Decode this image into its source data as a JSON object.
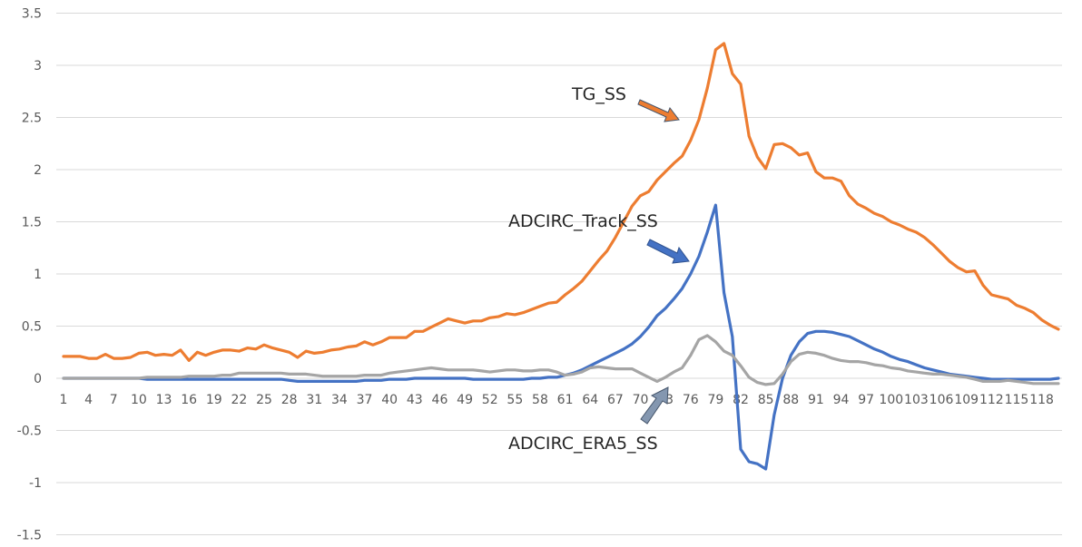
{
  "chart_data": {
    "type": "line",
    "title": "",
    "xlabel": "",
    "ylabel": "",
    "ylim": [
      -1.5,
      3.5
    ],
    "ytick_step": 0.5,
    "yticks": [
      "-1.5",
      "-1",
      "-0.5",
      "0",
      "0.5",
      "1",
      "1.5",
      "2",
      "2.5",
      "3",
      "3.5"
    ],
    "grid": true,
    "legend": "none",
    "x": [
      1,
      2,
      3,
      4,
      5,
      6,
      7,
      8,
      9,
      10,
      11,
      12,
      13,
      14,
      15,
      16,
      17,
      18,
      19,
      20,
      21,
      22,
      23,
      24,
      25,
      26,
      27,
      28,
      29,
      30,
      31,
      32,
      33,
      34,
      35,
      36,
      37,
      38,
      39,
      40,
      41,
      42,
      43,
      44,
      45,
      46,
      47,
      48,
      49,
      50,
      51,
      52,
      53,
      54,
      55,
      56,
      57,
      58,
      59,
      60,
      61,
      62,
      63,
      64,
      65,
      66,
      67,
      68,
      69,
      70,
      71,
      72,
      73,
      74,
      75,
      76,
      77,
      78,
      79,
      80,
      81,
      82,
      83,
      84,
      85,
      86,
      87,
      88,
      89,
      90,
      91,
      92,
      93,
      94,
      95,
      96,
      97,
      98,
      99,
      100,
      101,
      102,
      103,
      104,
      105,
      106,
      107,
      108,
      109,
      110,
      111,
      112,
      113,
      114,
      115,
      116,
      117,
      118,
      119,
      120
    ],
    "xtick_every": 3,
    "series": [
      {
        "name": "TG_SS",
        "color": "#ED7D31",
        "values": [
          0.21,
          0.21,
          0.21,
          0.19,
          0.19,
          0.23,
          0.19,
          0.19,
          0.2,
          0.24,
          0.25,
          0.22,
          0.23,
          0.22,
          0.27,
          0.17,
          0.25,
          0.22,
          0.25,
          0.27,
          0.27,
          0.26,
          0.29,
          0.28,
          0.32,
          0.29,
          0.27,
          0.25,
          0.2,
          0.26,
          0.24,
          0.25,
          0.27,
          0.28,
          0.3,
          0.31,
          0.35,
          0.32,
          0.35,
          0.39,
          0.39,
          0.39,
          0.45,
          0.45,
          0.49,
          0.53,
          0.57,
          0.55,
          0.53,
          0.55,
          0.55,
          0.58,
          0.59,
          0.62,
          0.61,
          0.63,
          0.66,
          0.69,
          0.72,
          0.73,
          0.8,
          0.86,
          0.93,
          1.03,
          1.13,
          1.22,
          1.35,
          1.5,
          1.65,
          1.75,
          1.79,
          1.9,
          1.98,
          2.06,
          2.13,
          2.28,
          2.48,
          2.78,
          3.15,
          3.21,
          2.92,
          2.82,
          2.32,
          2.12,
          2.01,
          2.24,
          2.25,
          2.21,
          2.14,
          2.16,
          1.98,
          1.92,
          1.92,
          1.89,
          1.75,
          1.67,
          1.63,
          1.58,
          1.55,
          1.5,
          1.47,
          1.43,
          1.4,
          1.35,
          1.28,
          1.2,
          1.12,
          1.06,
          1.02,
          1.03,
          0.89,
          0.8,
          0.78,
          0.76,
          0.7,
          0.67,
          0.63,
          0.56,
          0.51,
          0.47
        ]
      },
      {
        "name": "ADCIRC_Track_SS",
        "color": "#4472C4",
        "values": [
          0,
          0,
          0,
          0,
          0,
          0,
          0,
          0,
          0,
          0,
          -0.01,
          -0.01,
          -0.01,
          -0.01,
          -0.01,
          -0.01,
          -0.01,
          -0.01,
          -0.01,
          -0.01,
          -0.01,
          -0.01,
          -0.01,
          -0.01,
          -0.01,
          -0.01,
          -0.01,
          -0.02,
          -0.03,
          -0.03,
          -0.03,
          -0.03,
          -0.03,
          -0.03,
          -0.03,
          -0.03,
          -0.02,
          -0.02,
          -0.02,
          -0.01,
          -0.01,
          -0.01,
          0,
          0,
          0,
          0,
          0,
          0,
          0,
          -0.01,
          -0.01,
          -0.01,
          -0.01,
          -0.01,
          -0.01,
          -0.01,
          0,
          0,
          0.01,
          0.01,
          0.03,
          0.05,
          0.08,
          0.12,
          0.16,
          0.2,
          0.24,
          0.28,
          0.33,
          0.4,
          0.49,
          0.6,
          0.67,
          0.76,
          0.86,
          1.0,
          1.17,
          1.4,
          1.66,
          0.82,
          0.4,
          -0.68,
          -0.8,
          -0.82,
          -0.87,
          -0.35,
          0.0,
          0.22,
          0.35,
          0.43,
          0.45,
          0.45,
          0.44,
          0.42,
          0.4,
          0.36,
          0.32,
          0.28,
          0.25,
          0.21,
          0.18,
          0.16,
          0.13,
          0.1,
          0.08,
          0.06,
          0.04,
          0.03,
          0.02,
          0.01,
          0,
          -0.01,
          -0.01,
          -0.01,
          -0.01,
          -0.01,
          -0.01,
          -0.01,
          -0.01,
          0.0
        ]
      },
      {
        "name": "ADCIRC_ERA5_SS",
        "color": "#A5A5A5",
        "values": [
          0,
          0,
          0,
          0,
          0,
          0,
          0,
          0,
          0,
          0,
          0.01,
          0.01,
          0.01,
          0.01,
          0.01,
          0.02,
          0.02,
          0.02,
          0.02,
          0.03,
          0.03,
          0.05,
          0.05,
          0.05,
          0.05,
          0.05,
          0.05,
          0.04,
          0.04,
          0.04,
          0.03,
          0.02,
          0.02,
          0.02,
          0.02,
          0.02,
          0.03,
          0.03,
          0.03,
          0.05,
          0.06,
          0.07,
          0.08,
          0.09,
          0.1,
          0.09,
          0.08,
          0.08,
          0.08,
          0.08,
          0.07,
          0.06,
          0.07,
          0.08,
          0.08,
          0.07,
          0.07,
          0.08,
          0.08,
          0.06,
          0.03,
          0.04,
          0.06,
          0.1,
          0.11,
          0.1,
          0.09,
          0.09,
          0.09,
          0.05,
          0.01,
          -0.03,
          0.01,
          0.06,
          0.1,
          0.22,
          0.37,
          0.41,
          0.35,
          0.26,
          0.22,
          0.12,
          0.01,
          -0.04,
          -0.06,
          -0.05,
          0.04,
          0.16,
          0.23,
          0.25,
          0.24,
          0.22,
          0.19,
          0.17,
          0.16,
          0.16,
          0.15,
          0.13,
          0.12,
          0.1,
          0.09,
          0.07,
          0.06,
          0.05,
          0.04,
          0.04,
          0.03,
          0.02,
          0.01,
          -0.01,
          -0.03,
          -0.03,
          -0.03,
          -0.02,
          -0.03,
          -0.04,
          -0.05,
          -0.05,
          -0.05,
          -0.05
        ]
      }
    ],
    "annotations": [
      {
        "text": "TG_SS",
        "series": "TG_SS",
        "arrow_color": "#ED7D31"
      },
      {
        "text": "ADCIRC_Track_SS",
        "series": "ADCIRC_Track_SS",
        "arrow_color": "#4472C4"
      },
      {
        "text": "ADCIRC_ERA5_SS",
        "series": "ADCIRC_ERA5_SS",
        "arrow_color": "#8497B0"
      }
    ]
  }
}
